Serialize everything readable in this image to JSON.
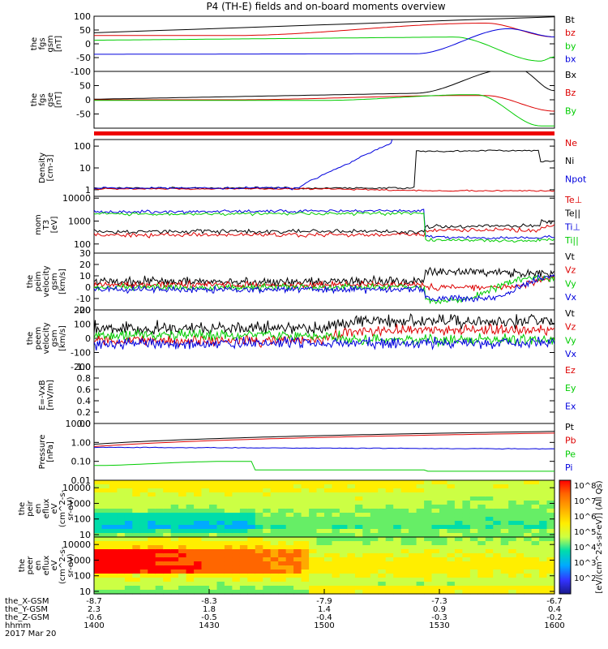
{
  "title": "P4 (TH-E) fields and on-board moments overview",
  "colors": {
    "black": "#000000",
    "red": "#dd0000",
    "green": "#00cc00",
    "blue": "#0000dd"
  },
  "chart_data": [
    {
      "type": "line",
      "id": "fgs_gsm",
      "ylabel": [
        "the",
        "fgs",
        "gsm",
        "[nT]"
      ],
      "ylim": [
        -100,
        100
      ],
      "yticks": [
        "100",
        "50",
        "0",
        "-50",
        "-100"
      ],
      "series": [
        {
          "name": "Bt",
          "color": "black"
        },
        {
          "name": "bz",
          "color": "red"
        },
        {
          "name": "by",
          "color": "green"
        },
        {
          "name": "bx",
          "color": "blue"
        }
      ]
    },
    {
      "type": "line",
      "id": "fgs_gse",
      "ylabel": [
        "the",
        "fgs",
        "gse",
        "[nT]"
      ],
      "ylim": [
        -100,
        100
      ],
      "yticks": [
        "50",
        "0",
        "-50"
      ],
      "series": [
        {
          "name": "Bx",
          "color": "black"
        },
        {
          "name": "Bz",
          "color": "red"
        },
        {
          "name": "By",
          "color": "green"
        }
      ]
    },
    {
      "type": "line",
      "id": "density",
      "ylabel": [
        "Density",
        "[cm-3]"
      ],
      "ylim": [
        0.5,
        200
      ],
      "yscale": "log",
      "yticks": [
        "100",
        "10",
        "1"
      ],
      "series": [
        {
          "name": "Ne",
          "color": "red"
        },
        {
          "name": "Ni",
          "color": "black"
        },
        {
          "name": "Npot",
          "color": "blue"
        }
      ]
    },
    {
      "type": "line",
      "id": "temperature",
      "ylabel": [
        "mom",
        "T3",
        "[eV]"
      ],
      "ylim": [
        40,
        12000
      ],
      "yscale": "log",
      "yticks": [
        "10000",
        "1000",
        "100"
      ],
      "series": [
        {
          "name": "Te⊥",
          "color": "red"
        },
        {
          "name": "Te||",
          "color": "black"
        },
        {
          "name": "Ti⊥",
          "color": "blue"
        },
        {
          "name": "Ti||",
          "color": "green"
        }
      ]
    },
    {
      "type": "line",
      "id": "peim_velocity",
      "ylabel": [
        "the",
        "peim",
        "velocity",
        "gsm",
        "[km/s]"
      ],
      "ylim": [
        -20,
        30
      ],
      "yticks": [
        "30",
        "20",
        "10",
        "0",
        "-10",
        "-20"
      ],
      "series": [
        {
          "name": "Vt",
          "color": "black"
        },
        {
          "name": "Vz",
          "color": "red"
        },
        {
          "name": "Vy",
          "color": "green"
        },
        {
          "name": "Vx",
          "color": "blue"
        }
      ]
    },
    {
      "type": "line",
      "id": "peem_velocity",
      "ylabel": [
        "the",
        "peem",
        "velocity",
        "gsm",
        "[km/s]"
      ],
      "ylim": [
        -200,
        200
      ],
      "yticks": [
        "200",
        "100",
        "0",
        "-100",
        "-200"
      ],
      "series": [
        {
          "name": "Vt",
          "color": "black"
        },
        {
          "name": "Vz",
          "color": "red"
        },
        {
          "name": "Vy",
          "color": "green"
        },
        {
          "name": "Vx",
          "color": "blue"
        }
      ]
    },
    {
      "type": "line",
      "id": "e_field",
      "ylabel": [
        "E=-VxB",
        "[mV/m]"
      ],
      "ylim": [
        0,
        1
      ],
      "yticks": [
        "1.0",
        "0.8",
        "0.6",
        "0.4",
        "0.2",
        "0.0"
      ],
      "series": [
        {
          "name": "Ez",
          "color": "red"
        },
        {
          "name": "Ey",
          "color": "green"
        },
        {
          "name": "Ex",
          "color": "blue"
        }
      ]
    },
    {
      "type": "line",
      "id": "pressure",
      "ylabel": [
        "Pressure",
        "[nPa]"
      ],
      "ylim": [
        0.01,
        10
      ],
      "yscale": "log",
      "yticks": [
        "10.00",
        "1.00",
        "0.10",
        "0.01"
      ],
      "series": [
        {
          "name": "Pt",
          "color": "black"
        },
        {
          "name": "Pb",
          "color": "red"
        },
        {
          "name": "Pe",
          "color": "green"
        },
        {
          "name": "Pi",
          "color": "blue"
        }
      ]
    },
    {
      "type": "heatmap",
      "id": "peir_en",
      "ylabel": [
        "the",
        "peir",
        "en",
        "eflux",
        "eV",
        "(cm^2-s-",
        "sr-eV)"
      ],
      "ylim": [
        7,
        30000
      ],
      "yscale": "log",
      "yticks": [
        "10000",
        "1000",
        "100",
        "10"
      ]
    },
    {
      "type": "heatmap",
      "id": "peer_en",
      "ylabel": [
        "the",
        "peer",
        "en",
        "eflux",
        "eV",
        "(cm^2-s-",
        "sr-eV)"
      ],
      "ylim": [
        7,
        30000
      ],
      "yscale": "log",
      "yticks": [
        "10000",
        "1000",
        "100",
        "10"
      ]
    }
  ],
  "colorbar": {
    "label": "[eV/(cm^2-s-sr-eV)] (All Qs)",
    "ticks": [
      "10^8",
      "10^7",
      "10^6",
      "10^5",
      "10^4",
      "10^3",
      "10^2"
    ]
  },
  "xaxis": {
    "rows": [
      {
        "label": "the_X-GSM",
        "values": [
          "-8.7",
          "-8.3",
          "-7.9",
          "-7.3",
          "-6.7"
        ]
      },
      {
        "label": "the_Y-GSM",
        "values": [
          "2.3",
          "1.8",
          "1.4",
          "0.9",
          "0.4"
        ]
      },
      {
        "label": "the_Z-GSM",
        "values": [
          "-0.6",
          "-0.5",
          "-0.4",
          "-0.3",
          "-0.2"
        ]
      },
      {
        "label": "hhmm",
        "values": [
          "1400",
          "1430",
          "1500",
          "1530",
          "1600"
        ]
      }
    ],
    "date": "2017 Mar 20"
  }
}
